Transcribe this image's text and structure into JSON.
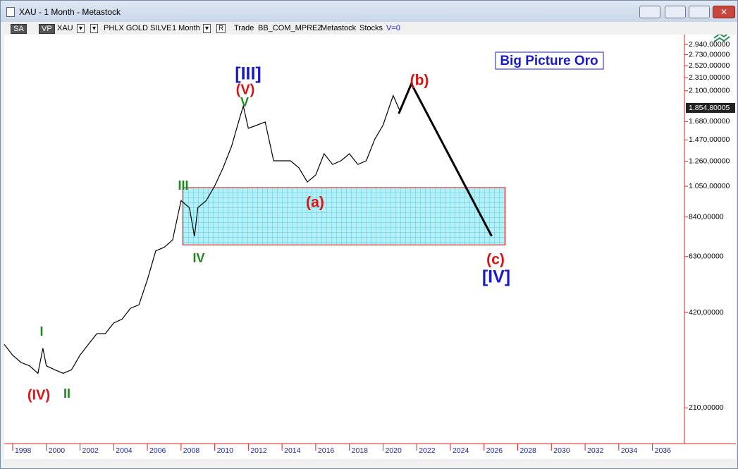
{
  "window": {
    "title": "XAU - 1 Month - Metastock"
  },
  "toolbar": {
    "sa": "SA",
    "vp": "VP",
    "symbol": "XAU",
    "name": "PHLX GOLD SILVE",
    "period": "1 Month",
    "r": "R",
    "mode": "Trade",
    "template": "BB_COM_MPREZ",
    "source": "Metastock",
    "market": "Stocks",
    "volume": "V=0"
  },
  "chart_data": {
    "type": "line",
    "title": "Big Picture Oro",
    "log_scale": true,
    "xlim": [
      1997.5,
      2037.9
    ],
    "xticks": [
      1998,
      2000,
      2002,
      2004,
      2006,
      2008,
      2010,
      2012,
      2014,
      2016,
      2018,
      2020,
      2022,
      2024,
      2026,
      2028,
      2030,
      2032,
      2034,
      2036
    ],
    "ylim": [
      162,
      3160
    ],
    "yticks": [
      {
        "value": 210,
        "label": "210,00000"
      },
      {
        "value": 420,
        "label": "420,00000"
      },
      {
        "value": 630,
        "label": "630,00000"
      },
      {
        "value": 840,
        "label": "840,00000"
      },
      {
        "value": 1050,
        "label": "1.050,00000"
      },
      {
        "value": 1260,
        "label": "1.260,00000"
      },
      {
        "value": 1470,
        "label": "1.470,00000"
      },
      {
        "value": 1680,
        "label": "1.680,00000"
      },
      {
        "value": 2100,
        "label": "2.100,00000"
      },
      {
        "value": 2310,
        "label": "2.310,00000"
      },
      {
        "value": 2520,
        "label": "2.520,00000"
      },
      {
        "value": 2730,
        "label": "2.730,00000"
      },
      {
        "value": 2940,
        "label": "2.940,00000"
      }
    ],
    "series": [
      {
        "color": "#000000",
        "x": [
          1997.5,
          1998,
          1998.5,
          1999,
          1999.5,
          1999.8,
          2000,
          2000.5,
          2001,
          2001.5,
          2002,
          2002.5,
          2003,
          2003.5,
          2004,
          2004.5,
          2005,
          2005.5,
          2006,
          2006.5,
          2007,
          2007.5,
          2008,
          2008.5,
          2008.8,
          2009,
          2009.5,
          2010,
          2010.5,
          2011,
          2011.5,
          2011.7,
          2012,
          2012.5,
          2013,
          2013.5,
          2014,
          2014.5,
          2015,
          2015.5,
          2016,
          2016.5,
          2017,
          2017.5,
          2018,
          2018.5,
          2019,
          2019.5,
          2020,
          2020.6,
          2021
        ],
        "values": [
          333,
          308,
          292,
          285,
          270,
          324,
          285,
          277,
          270,
          277,
          308,
          333,
          360,
          360,
          389,
          400,
          433,
          444,
          532,
          657,
          674,
          711,
          946,
          899,
          730,
          899,
          946,
          1053,
          1201,
          1403,
          1735,
          1880,
          1600,
          1636,
          1675,
          1263,
          1263,
          1263,
          1201,
          1083,
          1140,
          1330,
          1230,
          1263,
          1330,
          1230,
          1263,
          1475,
          1636,
          2030,
          1815
        ]
      },
      {
        "color": "#000000",
        "x": [
          2020.93,
          2021.68,
          2026.45
        ],
        "values": [
          1779,
          2210,
          731
        ]
      }
    ],
    "zone": {
      "x": [
        2008.1,
        2027.25
      ],
      "y": [
        686,
        1040
      ],
      "fill": "#b3f0f7",
      "stroke": "#e01010"
    },
    "last_price": {
      "value": 1854.80005,
      "label": "1.854,80005"
    },
    "annotations": [
      {
        "text": "[III]",
        "color": "#1a1acc"
      },
      {
        "text": "(V)",
        "color": "#dd1111"
      },
      {
        "text": "V",
        "color": "#1e8a1e"
      },
      {
        "text": "III",
        "color": "#1e8a1e"
      },
      {
        "text": "IV",
        "color": "#1e8a1e"
      },
      {
        "text": "(a)",
        "color": "#dd1111"
      },
      {
        "text": "(b)",
        "color": "#dd1111"
      },
      {
        "text": "(c)",
        "color": "#dd1111"
      },
      {
        "text": "[IV]",
        "color": "#1a1acc"
      },
      {
        "text": "I",
        "color": "#1e8a1e"
      },
      {
        "text": "(IV)",
        "color": "#dd1111"
      },
      {
        "text": "II",
        "color": "#1e8a1e"
      }
    ]
  }
}
